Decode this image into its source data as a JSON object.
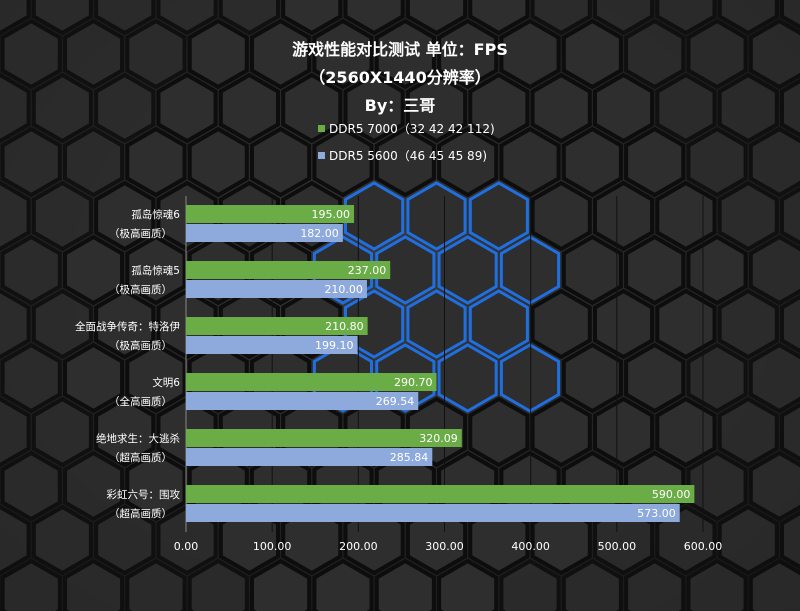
{
  "chart_data": {
    "type": "bar",
    "orientation": "horizontal",
    "title": "游戏性能对比测试 单位：FPS",
    "subtitle": "（2560X1440分辨率）",
    "author": "By：三哥",
    "categories": [
      [
        "孤岛惊魂6",
        "（极高画质）"
      ],
      [
        "孤岛惊魂5",
        "（极高画质）"
      ],
      [
        "全面战争传奇：特洛伊",
        "（极高画质）"
      ],
      [
        "文明6",
        "（全高画质）"
      ],
      [
        "绝地求生：大逃杀",
        "（超高画质）"
      ],
      [
        "彩虹六号：围攻",
        "（超高画质）"
      ]
    ],
    "series": [
      {
        "name": "DDR5 7000（32 42 42 112)",
        "color": "#6aac45",
        "values": [
          195.0,
          237.0,
          210.8,
          290.7,
          320.09,
          590.0
        ],
        "labels": [
          "195.00",
          "237.00",
          "210.80",
          "290.70",
          "320.09",
          "590.00"
        ]
      },
      {
        "name": "DDR5 5600（46 45 45 89)",
        "color": "#8eaadc",
        "values": [
          182.0,
          210.0,
          199.1,
          269.54,
          285.84,
          573.0
        ],
        "labels": [
          "182.00",
          "210.00",
          "199.10",
          "269.54",
          "285.84",
          "573.00"
        ]
      }
    ],
    "xlim": [
      0,
      600
    ],
    "xticks": [
      "0.00",
      "100.00",
      "200.00",
      "300.00",
      "400.00",
      "500.00",
      "600.00"
    ],
    "grid": true,
    "legend_position": "top-center"
  }
}
